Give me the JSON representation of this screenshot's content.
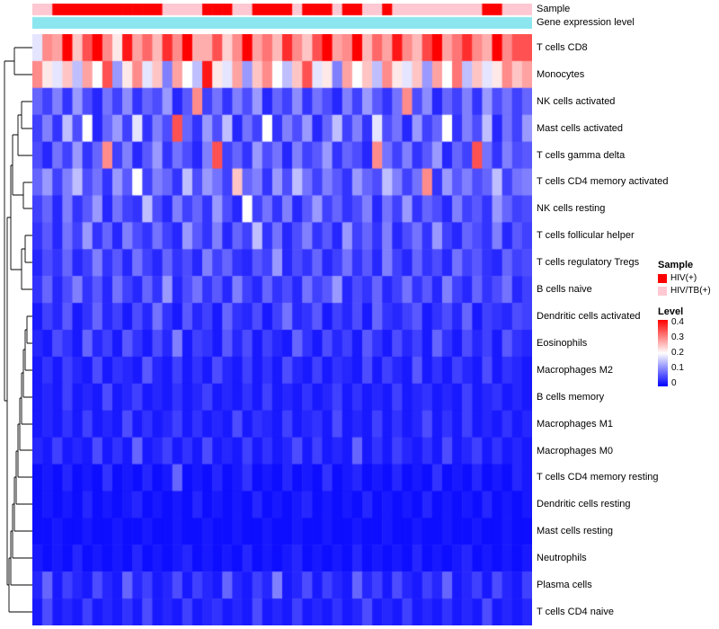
{
  "annotations": {
    "sample_label": "Sample",
    "expression_label": "Gene expression level"
  },
  "legend": {
    "sample_title": "Sample",
    "sample_items": [
      {
        "label": "HIV(+)",
        "color": "#FF0000"
      },
      {
        "label": "HIV/TB(+)",
        "color": "#FFC8D2"
      }
    ],
    "level_title": "Level",
    "level_ticks": [
      "0.4",
      "0.3",
      "0.2",
      "0.1",
      "0"
    ]
  },
  "chart_data": {
    "type": "heatmap",
    "columns": 50,
    "scale": {
      "min": 0,
      "mid": 0.2,
      "max": 0.42
    },
    "colormap": {
      "low": "#0000FF",
      "mid": "#FFFFFF",
      "high": "#FF0000"
    },
    "expression_annotation": {
      "label": "Gene expression level",
      "color": "#8CE6F0"
    },
    "column_annotation": {
      "label": "Sample",
      "categories": {
        "0": "HIV/TB(+)",
        "1": "HIV(+)"
      },
      "colors": {
        "HIV(+)": "#FF0000",
        "HIV/TB(+)": "#FFC8D2"
      },
      "values": [
        0,
        0,
        1,
        1,
        1,
        1,
        1,
        1,
        1,
        1,
        1,
        1,
        1,
        0,
        0,
        0,
        0,
        1,
        1,
        1,
        0,
        0,
        1,
        1,
        1,
        1,
        0,
        1,
        1,
        1,
        0,
        1,
        1,
        0,
        0,
        1,
        0,
        0,
        0,
        0,
        0,
        0,
        0,
        0,
        0,
        1,
        1,
        0,
        0,
        0
      ]
    },
    "rows": [
      "T cells CD8",
      "Monocytes",
      "NK cells activated",
      "Mast cells activated",
      "T cells gamma delta",
      "T cells CD4 memory activated",
      "NK cells resting",
      "T cells follicular helper",
      "T cells regulatory Tregs",
      "B cells naive",
      "Dendritic cells activated",
      "Eosinophils",
      "Macrophages M2",
      "B cells memory",
      "Macrophages M1",
      "Macrophages M0",
      "T cells CD4 memory resting",
      "Dendritic cells resting",
      "Mast cells resting",
      "Neutrophils",
      "Plasma cells",
      "T cells CD4 naive"
    ],
    "values": [
      [
        0.18,
        0.3,
        0.28,
        0.42,
        0.25,
        0.35,
        0.45,
        0.3,
        0.22,
        0.4,
        0.28,
        0.33,
        0.26,
        0.38,
        0.3,
        0.45,
        0.27,
        0.27,
        0.35,
        0.24,
        0.3,
        0.44,
        0.28,
        0.32,
        0.26,
        0.38,
        0.3,
        0.25,
        0.35,
        0.42,
        0.28,
        0.3,
        0.45,
        0.26,
        0.33,
        0.28,
        0.4,
        0.3,
        0.26,
        0.36,
        0.44,
        0.28,
        0.32,
        0.38,
        0.3,
        0.27,
        0.42,
        0.3,
        0.35,
        0.35
      ],
      [
        0.3,
        0.22,
        0.18,
        0.25,
        0.15,
        0.28,
        0.2,
        0.35,
        0.12,
        0.22,
        0.3,
        0.18,
        0.25,
        0.1,
        0.28,
        0.2,
        0.15,
        0.4,
        0.22,
        0.18,
        0.28,
        0.12,
        0.25,
        0.3,
        0.2,
        0.15,
        0.25,
        0.35,
        0.18,
        0.22,
        0.1,
        0.28,
        0.2,
        0.25,
        0.15,
        0.3,
        0.22,
        0.18,
        0.25,
        0.12,
        0.28,
        0.2,
        0.32,
        0.15,
        0.25,
        0.18,
        0.22,
        0.3,
        0.25,
        0.28
      ],
      [
        0.08,
        0.05,
        0.1,
        0.04,
        0.12,
        0.06,
        0.03,
        0.09,
        0.05,
        0.11,
        0.04,
        0.08,
        0.06,
        0.12,
        0.03,
        0.07,
        0.3,
        0.05,
        0.09,
        0.04,
        0.1,
        0.06,
        0.12,
        0.03,
        0.08,
        0.05,
        0.11,
        0.04,
        0.09,
        0.06,
        0.03,
        0.1,
        0.05,
        0.12,
        0.07,
        0.04,
        0.09,
        0.3,
        0.06,
        0.11,
        0.03,
        0.08,
        0.05,
        0.1,
        0.04,
        0.12,
        0.06,
        0.09,
        0.05,
        0.08
      ],
      [
        0.05,
        0.1,
        0.04,
        0.15,
        0.06,
        0.2,
        0.03,
        0.08,
        0.12,
        0.05,
        0.18,
        0.04,
        0.1,
        0.06,
        0.35,
        0.08,
        0.04,
        0.12,
        0.06,
        0.15,
        0.03,
        0.09,
        0.05,
        0.2,
        0.04,
        0.1,
        0.06,
        0.12,
        0.03,
        0.08,
        0.15,
        0.05,
        0.1,
        0.04,
        0.18,
        0.06,
        0.09,
        0.03,
        0.12,
        0.05,
        0.08,
        0.2,
        0.04,
        0.1,
        0.06,
        0.15,
        0.03,
        0.09,
        0.05,
        0.12
      ],
      [
        0.06,
        0.03,
        0.09,
        0.05,
        0.12,
        0.04,
        0.08,
        0.3,
        0.05,
        0.1,
        0.03,
        0.07,
        0.12,
        0.04,
        0.09,
        0.06,
        0.03,
        0.1,
        0.35,
        0.05,
        0.08,
        0.04,
        0.12,
        0.06,
        0.09,
        0.03,
        0.1,
        0.05,
        0.07,
        0.12,
        0.04,
        0.08,
        0.06,
        0.03,
        0.3,
        0.09,
        0.05,
        0.1,
        0.04,
        0.07,
        0.12,
        0.03,
        0.08,
        0.05,
        0.35,
        0.09,
        0.04,
        0.1,
        0.06,
        0.07
      ],
      [
        0.08,
        0.12,
        0.05,
        0.1,
        0.15,
        0.06,
        0.09,
        0.04,
        0.12,
        0.07,
        0.2,
        0.05,
        0.1,
        0.08,
        0.04,
        0.15,
        0.06,
        0.12,
        0.09,
        0.05,
        0.25,
        0.08,
        0.1,
        0.04,
        0.12,
        0.06,
        0.15,
        0.09,
        0.05,
        0.1,
        0.07,
        0.04,
        0.12,
        0.08,
        0.06,
        0.15,
        0.1,
        0.05,
        0.09,
        0.3,
        0.04,
        0.12,
        0.07,
        0.1,
        0.06,
        0.08,
        0.15,
        0.05,
        0.09,
        0.1
      ],
      [
        0.05,
        0.08,
        0.03,
        0.1,
        0.04,
        0.07,
        0.12,
        0.03,
        0.09,
        0.05,
        0.04,
        0.15,
        0.06,
        0.03,
        0.1,
        0.05,
        0.08,
        0.04,
        0.12,
        0.06,
        0.03,
        0.2,
        0.05,
        0.09,
        0.04,
        0.1,
        0.03,
        0.07,
        0.12,
        0.05,
        0.08,
        0.04,
        0.06,
        0.1,
        0.03,
        0.09,
        0.05,
        0.12,
        0.04,
        0.08,
        0.06,
        0.03,
        0.1,
        0.05,
        0.07,
        0.04,
        0.12,
        0.08,
        0.05,
        0.06
      ],
      [
        0.04,
        0.07,
        0.03,
        0.09,
        0.05,
        0.12,
        0.04,
        0.08,
        0.03,
        0.1,
        0.06,
        0.04,
        0.09,
        0.05,
        0.03,
        0.12,
        0.07,
        0.04,
        0.1,
        0.03,
        0.08,
        0.05,
        0.15,
        0.04,
        0.09,
        0.03,
        0.06,
        0.1,
        0.04,
        0.07,
        0.03,
        0.12,
        0.05,
        0.08,
        0.04,
        0.1,
        0.03,
        0.06,
        0.09,
        0.04,
        0.12,
        0.05,
        0.03,
        0.08,
        0.06,
        0.04,
        0.1,
        0.03,
        0.07,
        0.05
      ],
      [
        0.03,
        0.06,
        0.04,
        0.08,
        0.03,
        0.05,
        0.1,
        0.04,
        0.07,
        0.03,
        0.09,
        0.05,
        0.03,
        0.08,
        0.04,
        0.06,
        0.03,
        0.1,
        0.05,
        0.08,
        0.04,
        0.03,
        0.07,
        0.05,
        0.12,
        0.03,
        0.06,
        0.04,
        0.08,
        0.03,
        0.05,
        0.09,
        0.04,
        0.07,
        0.03,
        0.1,
        0.05,
        0.03,
        0.08,
        0.04,
        0.06,
        0.03,
        0.09,
        0.05,
        0.07,
        0.04,
        0.03,
        0.08,
        0.05,
        0.06
      ],
      [
        0.04,
        0.08,
        0.03,
        0.06,
        0.1,
        0.04,
        0.07,
        0.03,
        0.09,
        0.05,
        0.03,
        0.08,
        0.04,
        0.12,
        0.03,
        0.06,
        0.09,
        0.04,
        0.07,
        0.03,
        0.1,
        0.05,
        0.03,
        0.08,
        0.04,
        0.06,
        0.03,
        0.09,
        0.05,
        0.07,
        0.12,
        0.03,
        0.06,
        0.04,
        0.08,
        0.03,
        0.05,
        0.09,
        0.04,
        0.07,
        0.03,
        0.1,
        0.05,
        0.03,
        0.08,
        0.04,
        0.06,
        0.09,
        0.03,
        0.05
      ],
      [
        0.02,
        0.05,
        0.03,
        0.07,
        0.02,
        0.04,
        0.08,
        0.03,
        0.05,
        0.02,
        0.06,
        0.03,
        0.09,
        0.04,
        0.02,
        0.07,
        0.03,
        0.05,
        0.02,
        0.08,
        0.04,
        0.03,
        0.06,
        0.02,
        0.05,
        0.09,
        0.03,
        0.04,
        0.07,
        0.02,
        0.05,
        0.03,
        0.06,
        0.02,
        0.08,
        0.04,
        0.03,
        0.05,
        0.07,
        0.02,
        0.04,
        0.06,
        0.03,
        0.08,
        0.02,
        0.05,
        0.04,
        0.03,
        0.06,
        0.05
      ],
      [
        0.03,
        0.02,
        0.06,
        0.04,
        0.02,
        0.08,
        0.03,
        0.05,
        0.02,
        0.07,
        0.04,
        0.02,
        0.06,
        0.03,
        0.1,
        0.02,
        0.05,
        0.04,
        0.02,
        0.07,
        0.03,
        0.06,
        0.02,
        0.05,
        0.03,
        0.02,
        0.08,
        0.04,
        0.02,
        0.06,
        0.03,
        0.05,
        0.02,
        0.07,
        0.04,
        0.02,
        0.06,
        0.03,
        0.05,
        0.02,
        0.08,
        0.04,
        0.02,
        0.06,
        0.03,
        0.05,
        0.02,
        0.07,
        0.04,
        0.03
      ],
      [
        0.02,
        0.04,
        0.02,
        0.05,
        0.03,
        0.02,
        0.06,
        0.02,
        0.04,
        0.03,
        0.02,
        0.07,
        0.03,
        0.02,
        0.05,
        0.02,
        0.04,
        0.02,
        0.06,
        0.03,
        0.02,
        0.05,
        0.02,
        0.04,
        0.02,
        0.06,
        0.03,
        0.02,
        0.05,
        0.02,
        0.04,
        0.03,
        0.02,
        0.06,
        0.02,
        0.05,
        0.03,
        0.02,
        0.07,
        0.02,
        0.04,
        0.02,
        0.05,
        0.03,
        0.02,
        0.06,
        0.02,
        0.04,
        0.03,
        0.02
      ],
      [
        0.02,
        0.03,
        0.02,
        0.05,
        0.02,
        0.03,
        0.02,
        0.06,
        0.02,
        0.03,
        0.05,
        0.02,
        0.03,
        0.02,
        0.04,
        0.02,
        0.03,
        0.05,
        0.02,
        0.03,
        0.02,
        0.04,
        0.02,
        0.05,
        0.02,
        0.03,
        0.02,
        0.04,
        0.02,
        0.03,
        0.05,
        0.02,
        0.04,
        0.02,
        0.03,
        0.02,
        0.05,
        0.02,
        0.03,
        0.04,
        0.02,
        0.03,
        0.02,
        0.05,
        0.02,
        0.03,
        0.04,
        0.02,
        0.03,
        0.02
      ],
      [
        0.02,
        0.03,
        0.02,
        0.04,
        0.02,
        0.05,
        0.02,
        0.03,
        0.02,
        0.06,
        0.02,
        0.04,
        0.02,
        0.03,
        0.05,
        0.02,
        0.04,
        0.02,
        0.03,
        0.02,
        0.06,
        0.02,
        0.04,
        0.03,
        0.02,
        0.05,
        0.02,
        0.03,
        0.04,
        0.02,
        0.06,
        0.02,
        0.03,
        0.02,
        0.05,
        0.02,
        0.04,
        0.02,
        0.03,
        0.06,
        0.02,
        0.04,
        0.02,
        0.05,
        0.02,
        0.03,
        0.02,
        0.04,
        0.02,
        0.03
      ],
      [
        0.03,
        0.02,
        0.05,
        0.02,
        0.03,
        0.02,
        0.06,
        0.02,
        0.04,
        0.02,
        0.08,
        0.02,
        0.03,
        0.05,
        0.02,
        0.04,
        0.02,
        0.06,
        0.02,
        0.03,
        0.02,
        0.05,
        0.02,
        0.04,
        0.02,
        0.03,
        0.06,
        0.02,
        0.05,
        0.02,
        0.03,
        0.02,
        0.08,
        0.02,
        0.04,
        0.02,
        0.05,
        0.03,
        0.02,
        0.04,
        0.02,
        0.06,
        0.02,
        0.03,
        0.05,
        0.02,
        0.04,
        0.02,
        0.03,
        0.02
      ],
      [
        0.01,
        0.02,
        0.01,
        0.03,
        0.01,
        0.02,
        0.01,
        0.04,
        0.01,
        0.02,
        0.01,
        0.03,
        0.01,
        0.02,
        0.08,
        0.01,
        0.02,
        0.01,
        0.03,
        0.01,
        0.02,
        0.04,
        0.01,
        0.02,
        0.01,
        0.03,
        0.01,
        0.02,
        0.01,
        0.04,
        0.01,
        0.02,
        0.03,
        0.01,
        0.02,
        0.01,
        0.03,
        0.01,
        0.02,
        0.01,
        0.04,
        0.01,
        0.02,
        0.01,
        0.03,
        0.01,
        0.02,
        0.01,
        0.03,
        0.02
      ],
      [
        0.01,
        0.02,
        0.01,
        0.02,
        0.01,
        0.03,
        0.01,
        0.02,
        0.01,
        0.02,
        0.03,
        0.01,
        0.02,
        0.01,
        0.02,
        0.01,
        0.03,
        0.01,
        0.02,
        0.01,
        0.02,
        0.01,
        0.03,
        0.01,
        0.02,
        0.01,
        0.02,
        0.03,
        0.01,
        0.02,
        0.01,
        0.02,
        0.01,
        0.03,
        0.01,
        0.02,
        0.01,
        0.02,
        0.01,
        0.03,
        0.01,
        0.02,
        0.01,
        0.02,
        0.01,
        0.03,
        0.01,
        0.02,
        0.01,
        0.02
      ],
      [
        0.01,
        0.01,
        0.02,
        0.01,
        0.01,
        0.02,
        0.01,
        0.01,
        0.02,
        0.01,
        0.01,
        0.02,
        0.01,
        0.01,
        0.02,
        0.01,
        0.01,
        0.02,
        0.01,
        0.01,
        0.02,
        0.01,
        0.01,
        0.02,
        0.01,
        0.01,
        0.02,
        0.01,
        0.01,
        0.02,
        0.01,
        0.01,
        0.02,
        0.01,
        0.01,
        0.02,
        0.01,
        0.01,
        0.02,
        0.01,
        0.01,
        0.02,
        0.01,
        0.01,
        0.02,
        0.01,
        0.01,
        0.02,
        0.01,
        0.01
      ],
      [
        0.02,
        0.01,
        0.02,
        0.01,
        0.03,
        0.01,
        0.02,
        0.01,
        0.02,
        0.01,
        0.03,
        0.01,
        0.02,
        0.01,
        0.02,
        0.03,
        0.01,
        0.02,
        0.01,
        0.02,
        0.01,
        0.03,
        0.01,
        0.02,
        0.01,
        0.02,
        0.03,
        0.01,
        0.02,
        0.01,
        0.02,
        0.01,
        0.03,
        0.01,
        0.02,
        0.01,
        0.02,
        0.01,
        0.03,
        0.01,
        0.02,
        0.01,
        0.02,
        0.03,
        0.01,
        0.02,
        0.01,
        0.02,
        0.01,
        0.02
      ],
      [
        0.03,
        0.08,
        0.02,
        0.05,
        0.03,
        0.02,
        0.06,
        0.03,
        0.02,
        0.08,
        0.03,
        0.05,
        0.02,
        0.03,
        0.06,
        0.02,
        0.05,
        0.03,
        0.02,
        0.08,
        0.03,
        0.02,
        0.05,
        0.03,
        0.1,
        0.02,
        0.03,
        0.06,
        0.02,
        0.05,
        0.03,
        0.02,
        0.08,
        0.03,
        0.05,
        0.02,
        0.06,
        0.03,
        0.02,
        0.05,
        0.03,
        0.08,
        0.02,
        0.03,
        0.05,
        0.02,
        0.06,
        0.03,
        0.02,
        0.05
      ],
      [
        0.02,
        0.06,
        0.02,
        0.03,
        0.02,
        0.05,
        0.02,
        0.03,
        0.02,
        0.04,
        0.02,
        0.06,
        0.02,
        0.03,
        0.02,
        0.05,
        0.02,
        0.03,
        0.04,
        0.02,
        0.03,
        0.02,
        0.06,
        0.02,
        0.03,
        0.02,
        0.05,
        0.02,
        0.03,
        0.02,
        0.04,
        0.02,
        0.03,
        0.06,
        0.02,
        0.03,
        0.02,
        0.05,
        0.02,
        0.03,
        0.02,
        0.04,
        0.02,
        0.03,
        0.02,
        0.06,
        0.02,
        0.03,
        0.02,
        0.03
      ]
    ]
  }
}
